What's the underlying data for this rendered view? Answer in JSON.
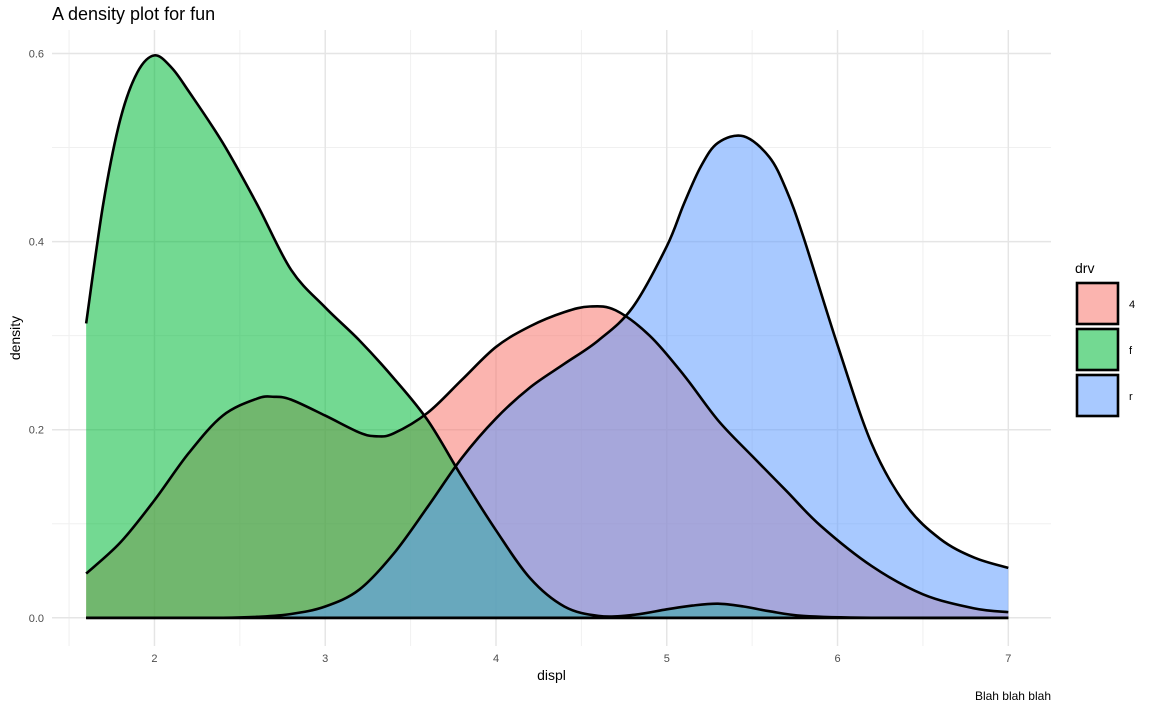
{
  "chart_data": {
    "type": "area",
    "title": "A density plot for fun",
    "caption": "Blah blah blah",
    "xlabel": "displ",
    "ylabel": "density",
    "xlim": [
      1.4,
      7.25
    ],
    "ylim": [
      -0.03,
      0.625
    ],
    "x_ticks": [
      2,
      3,
      4,
      5,
      6,
      7
    ],
    "y_ticks": [
      0.0,
      0.2,
      0.4,
      0.6
    ],
    "y_tick_labels": [
      "0.0",
      "0.2",
      "0.4",
      "0.6"
    ],
    "grid": true,
    "legend": {
      "title": "drv",
      "position": "right"
    },
    "series": [
      {
        "name": "4",
        "color": "#F8766D",
        "x": [
          1.6,
          1.8,
          2.0,
          2.2,
          2.4,
          2.6,
          2.7,
          2.8,
          3.0,
          3.2,
          3.3,
          3.4,
          3.6,
          3.8,
          4.0,
          4.2,
          4.4,
          4.55,
          4.7,
          4.9,
          5.1,
          5.3,
          5.5,
          5.7,
          5.9,
          6.2,
          6.5,
          6.8,
          7.0
        ],
        "y": [
          0.047,
          0.08,
          0.125,
          0.175,
          0.215,
          0.233,
          0.235,
          0.232,
          0.215,
          0.197,
          0.193,
          0.196,
          0.218,
          0.253,
          0.288,
          0.31,
          0.325,
          0.331,
          0.327,
          0.3,
          0.258,
          0.21,
          0.172,
          0.135,
          0.098,
          0.055,
          0.025,
          0.01,
          0.006
        ]
      },
      {
        "name": "f",
        "color": "#00BA38",
        "x": [
          1.6,
          1.7,
          1.8,
          1.9,
          2.0,
          2.1,
          2.2,
          2.4,
          2.6,
          2.8,
          3.0,
          3.2,
          3.4,
          3.6,
          3.8,
          4.0,
          4.2,
          4.4,
          4.6,
          4.8,
          5.0,
          5.15,
          5.3,
          5.45,
          5.6,
          5.8,
          6.2,
          7.0
        ],
        "y": [
          0.313,
          0.44,
          0.53,
          0.58,
          0.598,
          0.585,
          0.56,
          0.505,
          0.44,
          0.37,
          0.33,
          0.295,
          0.255,
          0.21,
          0.15,
          0.093,
          0.042,
          0.012,
          0.002,
          0.003,
          0.009,
          0.013,
          0.015,
          0.012,
          0.007,
          0.002,
          0.0,
          0.0
        ]
      },
      {
        "name": "r",
        "color": "#619CFF",
        "x": [
          1.6,
          2.0,
          2.4,
          2.6,
          2.8,
          3.0,
          3.2,
          3.4,
          3.6,
          3.8,
          4.0,
          4.2,
          4.4,
          4.6,
          4.8,
          5.0,
          5.1,
          5.2,
          5.3,
          5.45,
          5.6,
          5.7,
          5.8,
          6.0,
          6.2,
          6.4,
          6.6,
          6.8,
          7.0
        ],
        "y": [
          0.0,
          0.0,
          0.0,
          0.001,
          0.004,
          0.012,
          0.03,
          0.068,
          0.118,
          0.17,
          0.212,
          0.245,
          0.27,
          0.295,
          0.33,
          0.395,
          0.44,
          0.48,
          0.505,
          0.512,
          0.49,
          0.455,
          0.405,
          0.29,
          0.185,
          0.12,
          0.084,
          0.064,
          0.053
        ]
      }
    ],
    "fill_alpha": 0.55,
    "outline_color": "#000000"
  }
}
